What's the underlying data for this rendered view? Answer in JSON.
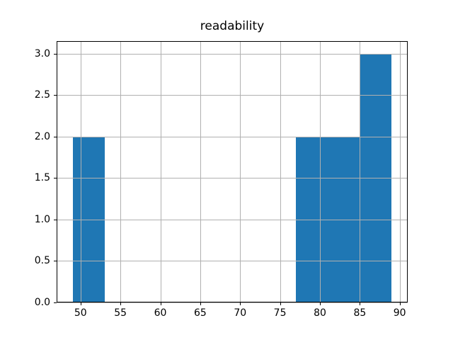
{
  "chart_data": {
    "type": "bar",
    "subtype": "histogram",
    "title": "readability",
    "bin_edges": [
      49,
      53,
      57,
      61,
      65,
      69,
      73,
      77,
      81,
      85,
      89
    ],
    "counts": [
      2,
      0,
      0,
      0,
      0,
      0,
      0,
      2,
      2,
      3
    ],
    "bins": [
      {
        "start": 49,
        "end": 53,
        "count": 2
      },
      {
        "start": 53,
        "end": 57,
        "count": 0
      },
      {
        "start": 57,
        "end": 61,
        "count": 0
      },
      {
        "start": 61,
        "end": 65,
        "count": 0
      },
      {
        "start": 65,
        "end": 69,
        "count": 0
      },
      {
        "start": 69,
        "end": 73,
        "count": 0
      },
      {
        "start": 73,
        "end": 77,
        "count": 0
      },
      {
        "start": 77,
        "end": 81,
        "count": 2
      },
      {
        "start": 81,
        "end": 85,
        "count": 2
      },
      {
        "start": 85,
        "end": 89,
        "count": 3
      }
    ],
    "xlabel": "",
    "ylabel": "",
    "xlim": [
      47,
      91
    ],
    "ylim": [
      0,
      3.15
    ],
    "xticks": [
      50,
      55,
      60,
      65,
      70,
      75,
      80,
      85,
      90
    ],
    "xtick_labels": [
      "50",
      "55",
      "60",
      "65",
      "70",
      "75",
      "80",
      "85",
      "90"
    ],
    "yticks": [
      0.0,
      0.5,
      1.0,
      1.5,
      2.0,
      2.5,
      3.0
    ],
    "ytick_labels": [
      "0.0",
      "0.5",
      "1.0",
      "1.5",
      "2.0",
      "2.5",
      "3.0"
    ],
    "grid": true,
    "grid_over_bars": true,
    "legend": null,
    "bar_color": "#1f77b4",
    "grid_color": "#b0b0b0",
    "spine_color": "#000000",
    "text_color": "#000000",
    "background_color": "#ffffff"
  }
}
